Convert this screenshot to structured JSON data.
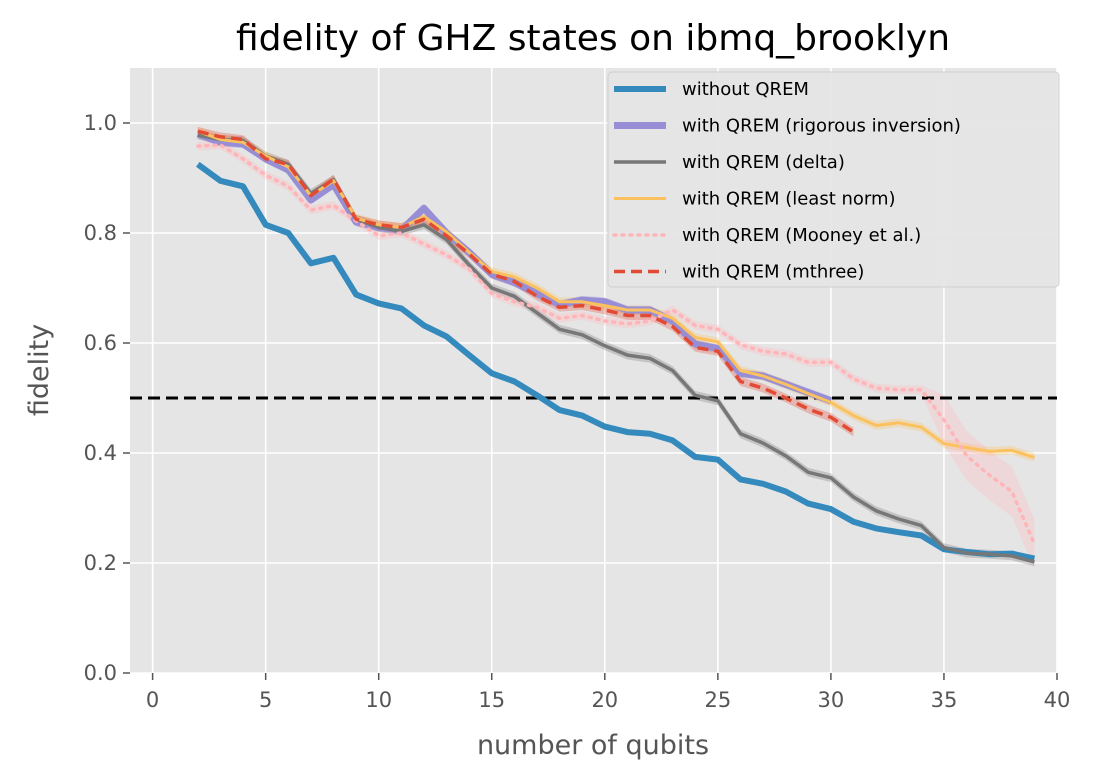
{
  "chart_data": {
    "type": "line",
    "title": "fidelity of GHZ states on ibmq_brooklyn",
    "xlabel": "number of qubits",
    "ylabel": "fidelity",
    "xlim": [
      -1,
      40
    ],
    "ylim": [
      0,
      1.1
    ],
    "xticks": [
      0,
      5,
      10,
      15,
      20,
      25,
      30,
      35,
      40
    ],
    "yticks": [
      0.0,
      0.2,
      0.4,
      0.6,
      0.8,
      1.0
    ],
    "grid": true,
    "legend_position": "top-right",
    "threshold": {
      "y": 0.5,
      "color": "#000000",
      "style": "dashed"
    },
    "series": [
      {
        "name": "without QREM",
        "color": "#348ABD",
        "style": "solid",
        "x": [
          2,
          3,
          4,
          5,
          6,
          7,
          8,
          9,
          10,
          11,
          12,
          13,
          14,
          15,
          16,
          17,
          18,
          19,
          20,
          21,
          22,
          23,
          24,
          25,
          26,
          27,
          28,
          29,
          30,
          31,
          32,
          33,
          34,
          35,
          36,
          37,
          38,
          39
        ],
        "y": [
          0.925,
          0.895,
          0.885,
          0.815,
          0.8,
          0.745,
          0.755,
          0.688,
          0.672,
          0.663,
          0.632,
          0.612,
          0.578,
          0.545,
          0.53,
          0.505,
          0.478,
          0.468,
          0.448,
          0.438,
          0.435,
          0.423,
          0.393,
          0.388,
          0.352,
          0.344,
          0.33,
          0.308,
          0.298,
          0.275,
          0.263,
          0.256,
          0.25,
          0.225,
          0.22,
          0.216,
          0.217,
          0.208
        ]
      },
      {
        "name": "with QREM (rigorous inversion)",
        "color": "#988ED5",
        "style": "solid",
        "x": [
          2,
          3,
          4,
          5,
          6,
          7,
          8,
          9,
          10,
          11,
          12,
          13,
          14,
          15,
          16,
          17,
          18,
          19,
          20,
          21,
          22,
          23,
          24,
          25,
          26,
          27,
          28,
          29,
          30
        ],
        "y": [
          0.98,
          0.965,
          0.962,
          0.935,
          0.915,
          0.86,
          0.888,
          0.82,
          0.81,
          0.805,
          0.845,
          0.8,
          0.765,
          0.725,
          0.71,
          0.69,
          0.67,
          0.678,
          0.675,
          0.66,
          0.66,
          0.64,
          0.598,
          0.59,
          0.545,
          0.54,
          0.525,
          0.51,
          0.495
        ]
      },
      {
        "name": "with QREM (delta)",
        "color": "#777777",
        "style": "solid",
        "x": [
          2,
          3,
          4,
          5,
          6,
          7,
          8,
          9,
          10,
          11,
          12,
          13,
          14,
          15,
          16,
          17,
          18,
          19,
          20,
          21,
          22,
          23,
          24,
          25,
          26,
          27,
          28,
          29,
          30,
          31,
          32,
          33,
          34,
          35,
          36,
          37,
          38,
          39
        ],
        "y": [
          0.978,
          0.97,
          0.968,
          0.94,
          0.925,
          0.872,
          0.897,
          0.825,
          0.81,
          0.803,
          0.815,
          0.788,
          0.742,
          0.7,
          0.685,
          0.655,
          0.625,
          0.615,
          0.595,
          0.578,
          0.572,
          0.55,
          0.505,
          0.495,
          0.435,
          0.418,
          0.395,
          0.365,
          0.355,
          0.32,
          0.295,
          0.28,
          0.268,
          0.228,
          0.218,
          0.216,
          0.213,
          0.202
        ]
      },
      {
        "name": "with QREM (least norm)",
        "color": "#FBC15E",
        "style": "solid",
        "x": [
          2,
          3,
          4,
          5,
          6,
          7,
          8,
          9,
          10,
          11,
          12,
          13,
          14,
          15,
          16,
          17,
          18,
          19,
          20,
          21,
          22,
          23,
          24,
          25,
          26,
          27,
          28,
          29,
          30,
          31,
          32,
          33,
          34,
          35,
          36,
          37,
          38,
          39
        ],
        "y": [
          0.985,
          0.97,
          0.965,
          0.94,
          0.92,
          0.868,
          0.895,
          0.827,
          0.815,
          0.81,
          0.83,
          0.802,
          0.765,
          0.73,
          0.72,
          0.7,
          0.675,
          0.675,
          0.668,
          0.66,
          0.66,
          0.645,
          0.61,
          0.602,
          0.55,
          0.54,
          0.525,
          0.508,
          0.492,
          0.468,
          0.45,
          0.455,
          0.447,
          0.417,
          0.41,
          0.403,
          0.405,
          0.392
        ]
      },
      {
        "name": "with QREM (Mooney et al.)",
        "color": "#FFB5B8",
        "style": "dotted",
        "x": [
          2,
          3,
          4,
          5,
          6,
          7,
          8,
          9,
          10,
          11,
          12,
          13,
          14,
          15,
          16,
          17,
          18,
          19,
          20,
          21,
          22,
          23,
          24,
          25,
          26,
          27,
          28,
          29,
          30,
          31,
          32,
          33,
          34,
          35,
          36,
          37,
          38,
          39
        ],
        "y": [
          0.958,
          0.96,
          0.935,
          0.905,
          0.885,
          0.842,
          0.85,
          0.822,
          0.795,
          0.8,
          0.78,
          0.76,
          0.735,
          0.69,
          0.675,
          0.665,
          0.645,
          0.65,
          0.64,
          0.635,
          0.64,
          0.66,
          0.632,
          0.625,
          0.597,
          0.585,
          0.58,
          0.565,
          0.565,
          0.535,
          0.518,
          0.515,
          0.515,
          0.46,
          0.395,
          0.36,
          0.33,
          0.235
        ]
      },
      {
        "name": "with QREM (mthree)",
        "color": "#E24A33",
        "style": "dashed",
        "x": [
          2,
          3,
          4,
          5,
          6,
          7,
          8,
          9,
          10,
          11,
          12,
          13,
          14,
          15,
          16,
          17,
          18,
          19,
          20,
          21,
          22,
          23,
          24,
          25,
          26,
          27,
          28,
          29,
          30,
          31
        ],
        "y": [
          0.985,
          0.975,
          0.97,
          0.935,
          0.925,
          0.868,
          0.898,
          0.825,
          0.815,
          0.81,
          0.825,
          0.795,
          0.762,
          0.725,
          0.712,
          0.685,
          0.665,
          0.668,
          0.66,
          0.65,
          0.65,
          0.63,
          0.592,
          0.585,
          0.53,
          0.518,
          0.5,
          0.48,
          0.465,
          0.438
        ]
      }
    ]
  }
}
